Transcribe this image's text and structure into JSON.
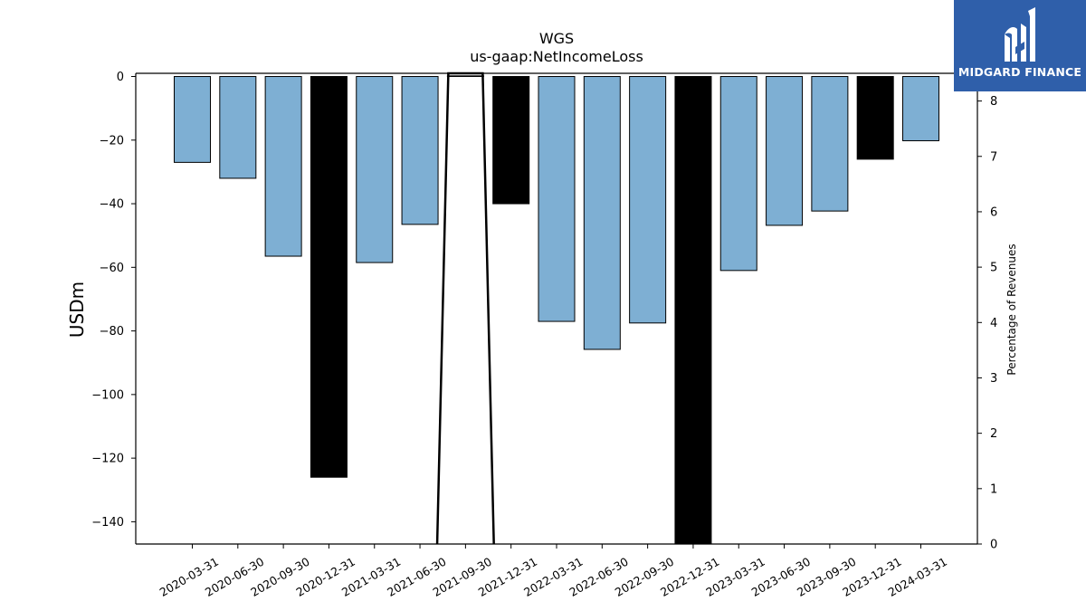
{
  "brand": {
    "name": "MIDGARD FINANCE",
    "bg_color": "#2f5faa"
  },
  "colors": {
    "bar_default": "#7eafd3",
    "bar_highlight": "#000000",
    "bar_outline": "#000000"
  },
  "chart_data": {
    "type": "bar",
    "title": "WGS",
    "subtitle": "us-gaap:NetIncomeLoss",
    "ylabel": "USDm",
    "y2label": "Percentage of Revenues",
    "ylim": [
      -147,
      1
    ],
    "y2lim": [
      0,
      8.5
    ],
    "yticks": [
      0,
      -20,
      -40,
      -60,
      -80,
      -100,
      -120,
      -140
    ],
    "y2ticks": [
      0,
      1,
      2,
      3,
      4,
      5,
      6,
      7,
      8
    ],
    "grid": false,
    "categories": [
      "2020-03-31",
      "2020-06-30",
      "2020-09-30",
      "2020-12-31",
      "2021-03-31",
      "2021-06-30",
      "2021-09-30",
      "2021-12-31",
      "2022-03-31",
      "2022-06-30",
      "2022-09-30",
      "2022-12-31",
      "2023-03-31",
      "2023-06-30",
      "2023-09-30",
      "2023-12-31",
      "2024-03-31"
    ],
    "values": [
      -27.0,
      -32.0,
      -56.5,
      -126.0,
      -58.5,
      -46.5,
      0.2,
      -40.0,
      -77.0,
      -85.8,
      -77.5,
      -147.0,
      -61.0,
      -46.8,
      -42.3,
      -26.0,
      -20.2
    ],
    "highlight": [
      false,
      false,
      false,
      true,
      false,
      false,
      false,
      true,
      false,
      false,
      false,
      true,
      false,
      false,
      false,
      true,
      false
    ],
    "line_series": {
      "axis": "secondary",
      "x": [
        "2021-06-30",
        "2021-09-30",
        "2021-09-30",
        "2021-12-31"
      ],
      "values": [
        0,
        8.5,
        8.5,
        0
      ]
    }
  }
}
